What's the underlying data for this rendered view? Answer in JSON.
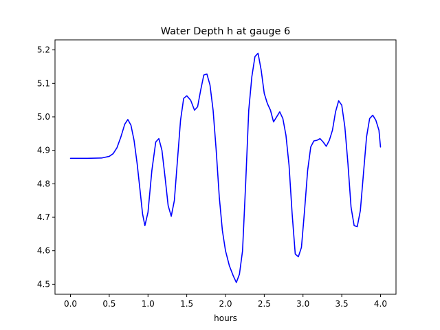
{
  "chart_data": {
    "type": "line",
    "title": "Water Depth h at gauge 6",
    "xlabel": "hours",
    "ylabel": "",
    "xlim": [
      -0.2,
      4.2
    ],
    "ylim": [
      4.47,
      5.23
    ],
    "xticks": [
      0.0,
      0.5,
      1.0,
      1.5,
      2.0,
      2.5,
      3.0,
      3.5,
      4.0
    ],
    "xtick_labels": [
      "0.0",
      "0.5",
      "1.0",
      "1.5",
      "2.0",
      "2.5",
      "3.0",
      "3.5",
      "4.0"
    ],
    "yticks": [
      4.5,
      4.6,
      4.7,
      4.8,
      4.9,
      5.0,
      5.1,
      5.2
    ],
    "ytick_labels": [
      "4.5",
      "4.6",
      "4.7",
      "4.8",
      "4.9",
      "5.0",
      "5.1",
      "5.2"
    ],
    "grid": false,
    "colors": {
      "line": "#0000ff",
      "axes": "#000000",
      "background": "#ffffff"
    },
    "series": [
      {
        "name": "",
        "x": [
          0.0,
          0.2,
          0.4,
          0.5,
          0.55,
          0.6,
          0.65,
          0.7,
          0.74,
          0.78,
          0.82,
          0.86,
          0.9,
          0.93,
          0.96,
          1.0,
          1.05,
          1.1,
          1.14,
          1.18,
          1.22,
          1.26,
          1.3,
          1.34,
          1.38,
          1.42,
          1.46,
          1.5,
          1.55,
          1.6,
          1.64,
          1.68,
          1.72,
          1.76,
          1.8,
          1.84,
          1.88,
          1.92,
          1.96,
          2.0,
          2.05,
          2.1,
          2.14,
          2.18,
          2.22,
          2.26,
          2.3,
          2.34,
          2.38,
          2.42,
          2.46,
          2.5,
          2.54,
          2.58,
          2.62,
          2.66,
          2.7,
          2.74,
          2.78,
          2.82,
          2.86,
          2.9,
          2.94,
          2.98,
          3.02,
          3.06,
          3.1,
          3.14,
          3.18,
          3.22,
          3.26,
          3.3,
          3.34,
          3.38,
          3.42,
          3.46,
          3.5,
          3.54,
          3.58,
          3.62,
          3.66,
          3.7,
          3.74,
          3.78,
          3.82,
          3.86,
          3.9,
          3.94,
          3.98,
          4.0
        ],
        "y": [
          4.876,
          4.876,
          4.877,
          4.882,
          4.89,
          4.908,
          4.94,
          4.978,
          4.992,
          4.975,
          4.93,
          4.86,
          4.775,
          4.71,
          4.675,
          4.715,
          4.84,
          4.925,
          4.935,
          4.9,
          4.82,
          4.735,
          4.703,
          4.75,
          4.87,
          4.99,
          5.055,
          5.063,
          5.05,
          5.02,
          5.03,
          5.08,
          5.125,
          5.128,
          5.095,
          5.02,
          4.9,
          4.76,
          4.66,
          4.6,
          4.555,
          4.525,
          4.505,
          4.53,
          4.6,
          4.8,
          5.02,
          5.12,
          5.18,
          5.19,
          5.14,
          5.07,
          5.04,
          5.02,
          4.985,
          5.0,
          5.015,
          4.995,
          4.945,
          4.855,
          4.71,
          4.59,
          4.582,
          4.61,
          4.72,
          4.84,
          4.91,
          4.928,
          4.93,
          4.935,
          4.925,
          4.912,
          4.93,
          4.96,
          5.015,
          5.048,
          5.035,
          4.97,
          4.86,
          4.73,
          4.675,
          4.672,
          4.72,
          4.83,
          4.94,
          4.995,
          5.005,
          4.99,
          4.96,
          4.91
        ]
      }
    ]
  }
}
